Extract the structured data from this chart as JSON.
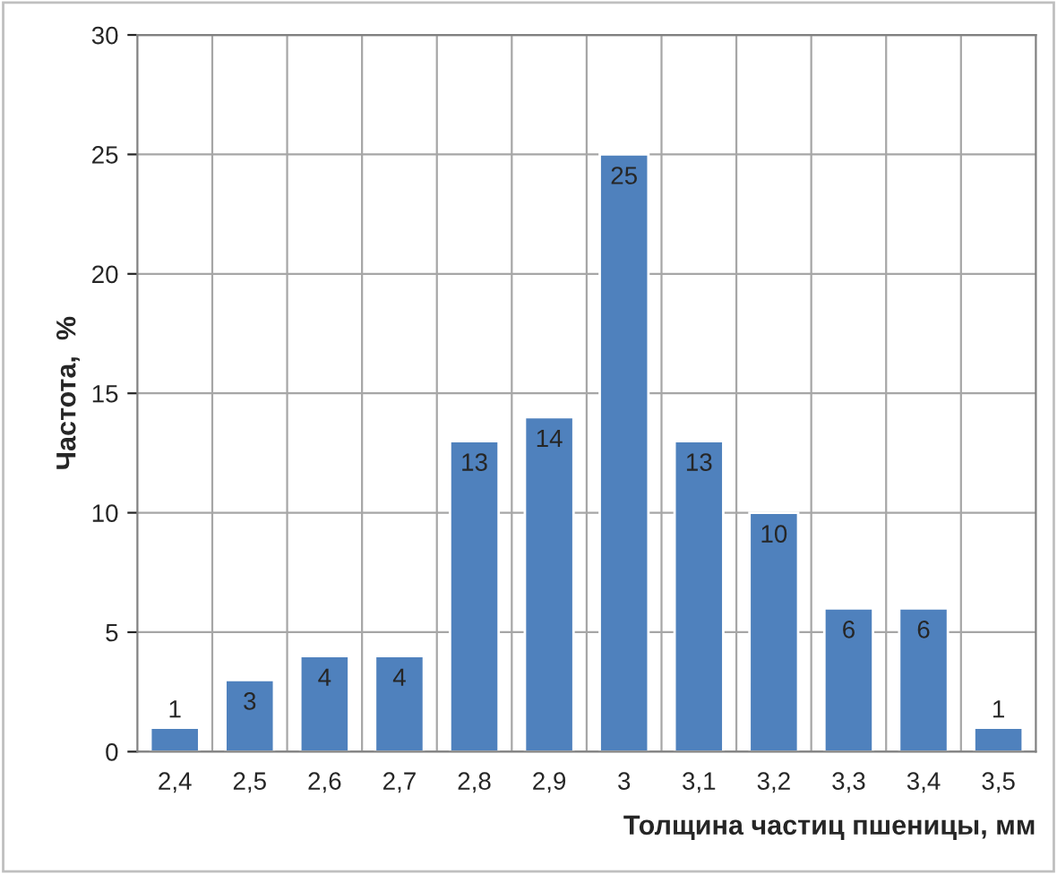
{
  "chart_data": {
    "type": "bar",
    "xlabel": "Толщина частиц пшеницы, мм",
    "ylabel": "Частота,  %",
    "categories": [
      "2,4",
      "2,5",
      "2,6",
      "2,7",
      "2,8",
      "2,9",
      "3",
      "3,1",
      "3,2",
      "3,3",
      "3,4",
      "3,5"
    ],
    "values": [
      1,
      3,
      4,
      4,
      13,
      14,
      25,
      13,
      10,
      6,
      6,
      1
    ],
    "color": "#4f81bd",
    "ylim": [
      0,
      30
    ],
    "yticks": [
      0,
      5,
      10,
      15,
      20,
      25,
      30
    ],
    "grid": true,
    "data_labels": true
  }
}
